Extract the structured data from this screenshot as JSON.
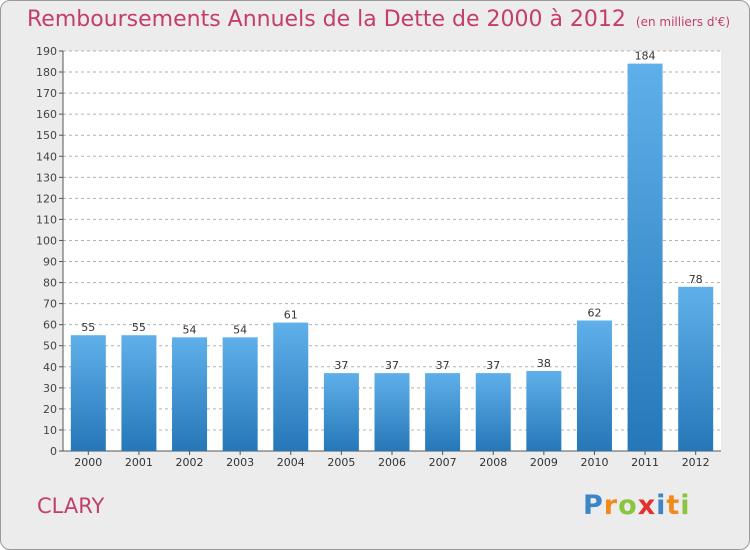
{
  "header": {
    "title": "Remboursements Annuels de la Dette de 2000 à 2012",
    "unit": "(en milliers d'€)"
  },
  "footer": {
    "commune": "CLARY",
    "logo_text": "Proxiti"
  },
  "colors": {
    "title": "#c33d6d",
    "bar_top": "#5fb0ea",
    "bar_bottom": "#2577b8",
    "grid": "#b0b0b0",
    "logo_letters": [
      "#3a86c8",
      "#f08a1c",
      "#8bc43f",
      "#e2312f",
      "#3a86c8",
      "#f08a1c",
      "#8bc43f"
    ]
  },
  "chart_data": {
    "type": "bar",
    "title": "Remboursements Annuels de la Dette de 2000 à 2012",
    "categories": [
      "2000",
      "2001",
      "2002",
      "2003",
      "2004",
      "2005",
      "2006",
      "2007",
      "2008",
      "2009",
      "2010",
      "2011",
      "2012"
    ],
    "values": [
      55,
      55,
      54,
      54,
      61,
      37,
      37,
      37,
      37,
      38,
      62,
      184,
      78
    ],
    "ylim": [
      0,
      190
    ],
    "ytick_step": 10,
    "grid": true,
    "data_labels": true
  }
}
